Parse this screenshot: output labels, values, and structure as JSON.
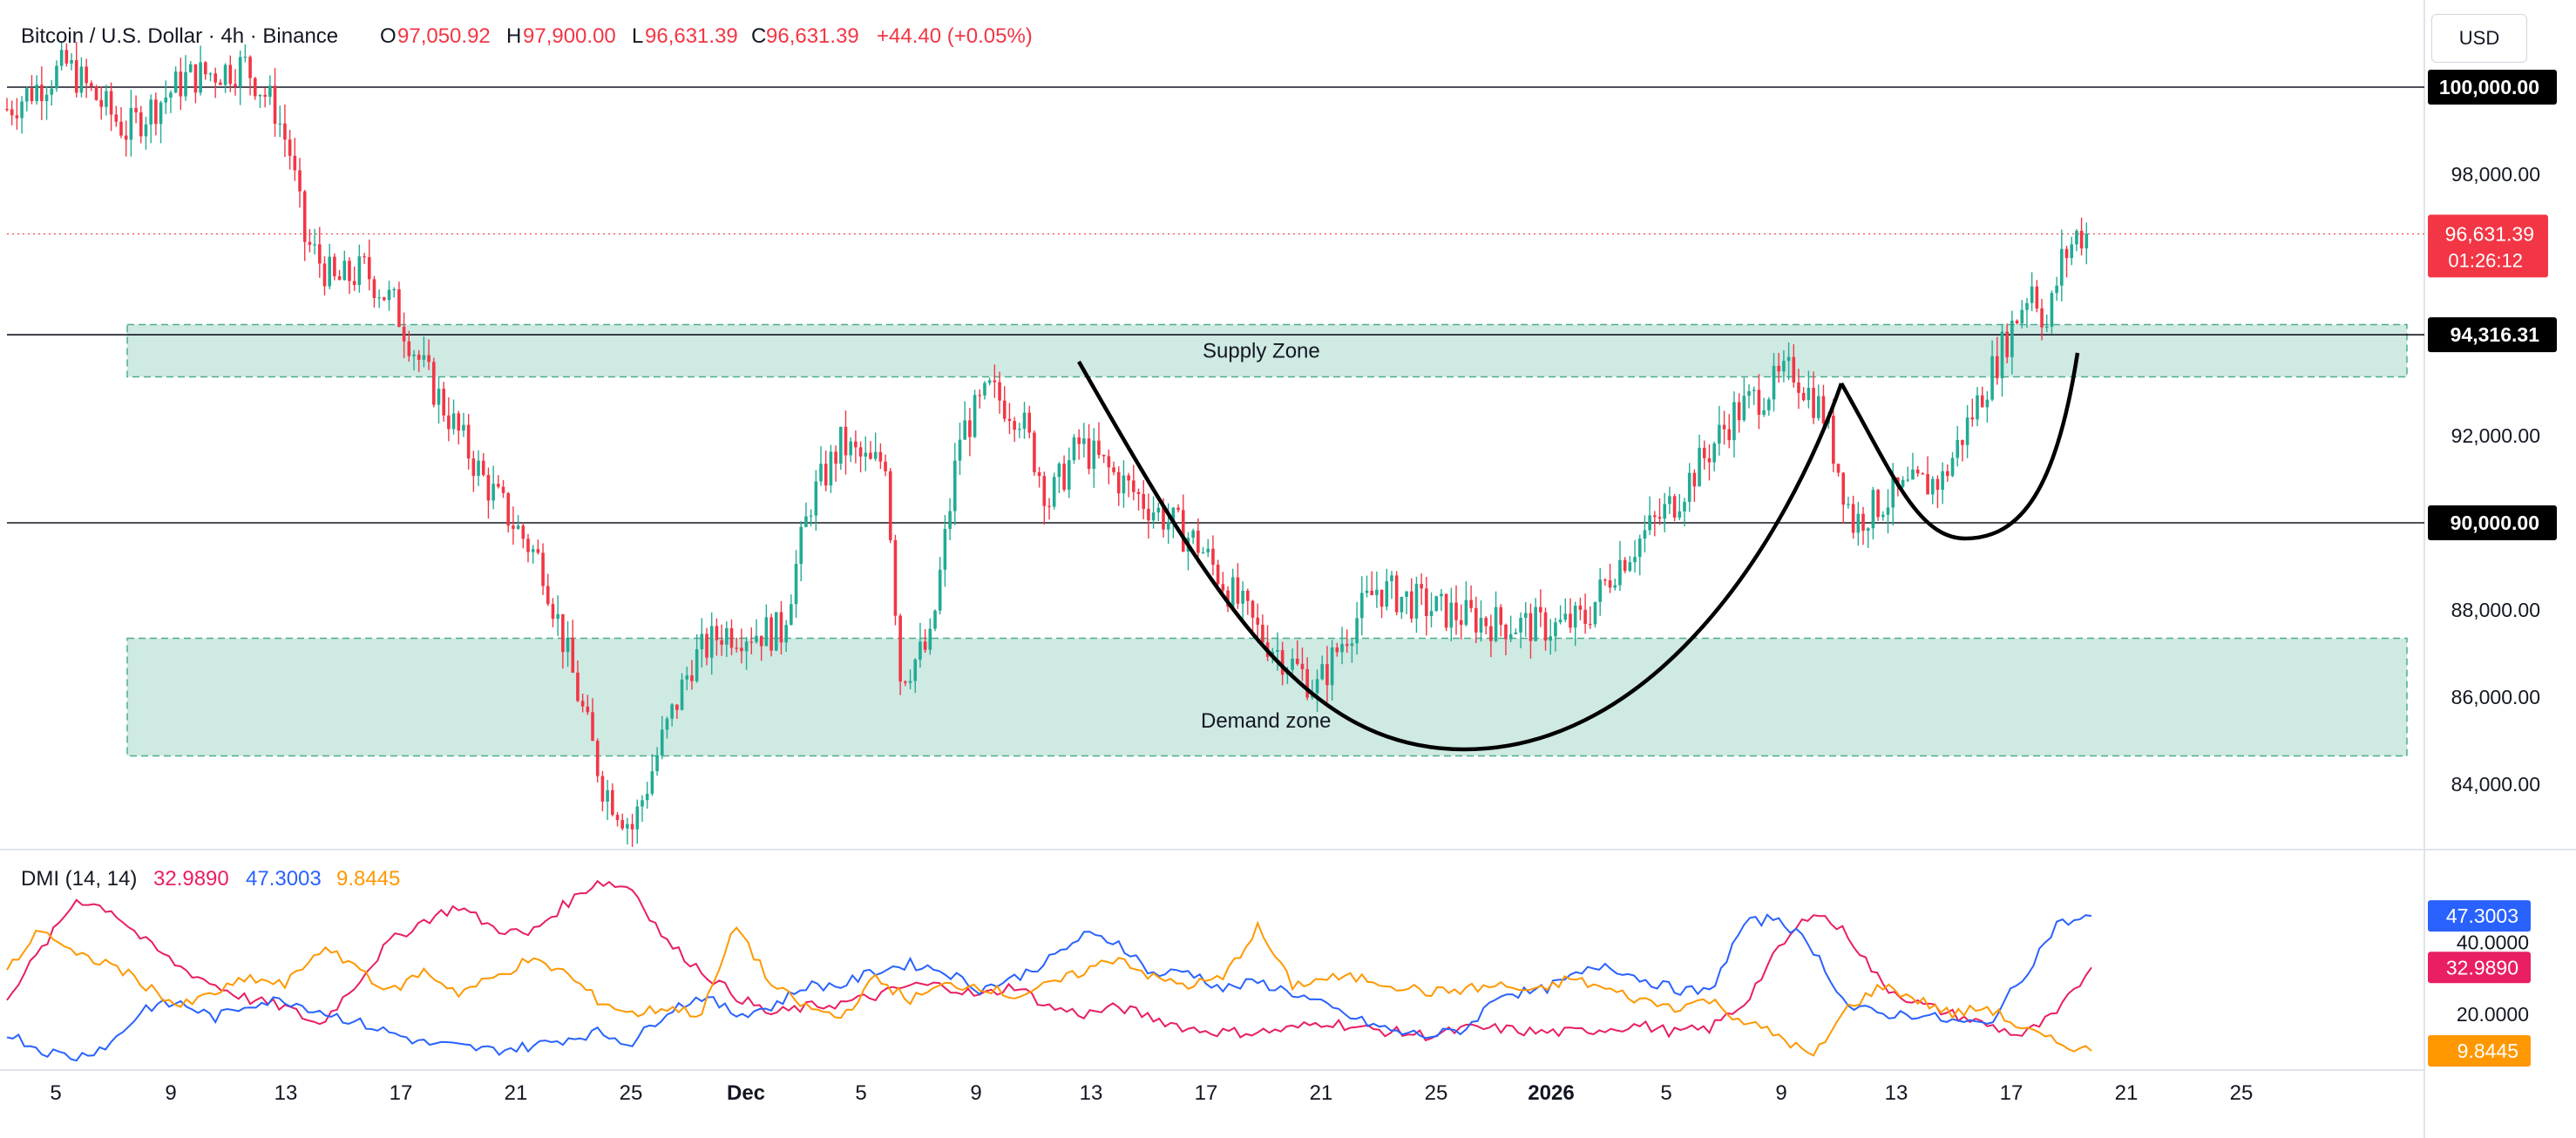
{
  "header": {
    "symbol": "Bitcoin / U.S. Dollar · 4h · Binance",
    "o_label": "O",
    "o_value": "97,050.92",
    "h_label": "H",
    "h_value": "97,900.00",
    "l_label": "L",
    "l_value": "96,631.39",
    "c_label": "C",
    "c_value": "96,631.39",
    "change": "+44.40 (+0.05%)"
  },
  "currency": "USD",
  "colors": {
    "up": "#22ab94",
    "down": "#f23645",
    "zone": "#b2dfd6",
    "zone_border": "#4caf8a",
    "plus_di": "#2962ff",
    "minus_di": "#e91e63",
    "adx": "#ff9800",
    "axis_text": "#131722"
  },
  "chart_data": [
    {
      "type": "candlestick",
      "symbol": "BTCUSD",
      "timeframe": "4h",
      "ylim": [
        82500,
        102000
      ],
      "x_ticks": [
        "5",
        "9",
        "13",
        "17",
        "21",
        "25",
        "Dec",
        "5",
        "9",
        "13",
        "17",
        "21",
        "25",
        "2026",
        "5",
        "9",
        "13",
        "17",
        "21",
        "25"
      ],
      "y_ticks": [
        "84,000.00",
        "86,000.00",
        "88,000.00",
        "92,000.00",
        "98,000.00"
      ],
      "close_path_approx": {
        "x_day_index": [
          0,
          2,
          4,
          6,
          8,
          9,
          9.5,
          10,
          11,
          12,
          13,
          14,
          16,
          18,
          19,
          20,
          21,
          22,
          23,
          24,
          26,
          27,
          28,
          29,
          29.5,
          30,
          31,
          32,
          33,
          34,
          35,
          36,
          38,
          40,
          42,
          44,
          45,
          46,
          48,
          50,
          52,
          53,
          54,
          56,
          58,
          60,
          61,
          62,
          63,
          64,
          65,
          66,
          67,
          68,
          68.5,
          69,
          69.5,
          70
        ],
        "close": [
          99500,
          100500,
          99000,
          100200,
          100500,
          99500,
          98500,
          96500,
          95500,
          95800,
          95000,
          93500,
          91000,
          89000,
          86500,
          84000,
          83000,
          85000,
          86800,
          87500,
          87500,
          90500,
          91800,
          91300,
          91500,
          86500,
          87200,
          92000,
          93000,
          92500,
          90500,
          91800,
          90600,
          89500,
          87500,
          86200,
          87500,
          88500,
          88000,
          87700,
          87600,
          87800,
          89000,
          90500,
          92500,
          93500,
          92500,
          90000,
          90500,
          90800,
          91000,
          92500,
          94000,
          95500,
          94500,
          96000,
          96600,
          96631
        ]
      },
      "horizontal_lines": [
        {
          "label": "100,000.00",
          "value": 100000
        },
        {
          "label": "90,000.00",
          "value": 90000
        },
        {
          "label": "94,316.31",
          "value": 94316.31
        }
      ],
      "current_price": {
        "label": "96,631.39",
        "countdown": "01:26:12",
        "value": 96631.39
      },
      "zones": [
        {
          "label": "Supply Zone",
          "from": 93350,
          "to": 94550
        },
        {
          "label": "Demand zone",
          "from": 84650,
          "to": 87350
        }
      ],
      "pattern": "cup and handle"
    },
    {
      "type": "line",
      "title": "DMI (14, 14)",
      "ylim": [
        5,
        65
      ],
      "y_ticks": [
        "40.0000",
        "20.0000"
      ],
      "series": [
        {
          "name": "minus_di",
          "label": "32.9890",
          "last": 32.989,
          "values": [
            25,
            38,
            52,
            49,
            40,
            33,
            28,
            24,
            22,
            17,
            28,
            40,
            46,
            50,
            44,
            42,
            50,
            57,
            55,
            40,
            32,
            25,
            20,
            22,
            23,
            25,
            28,
            28,
            25,
            28,
            22,
            20,
            22,
            19,
            16,
            15,
            15,
            16,
            18,
            16,
            15,
            14,
            16,
            16,
            15,
            15,
            16,
            17,
            15,
            16,
            23,
            38,
            49,
            42,
            28,
            23,
            20,
            17,
            14,
            20,
            33
          ]
        },
        {
          "name": "plus_di",
          "label": "47.3003",
          "last": 47.3003,
          "values": [
            15,
            10,
            8,
            12,
            22,
            23,
            19,
            23,
            24,
            21,
            18,
            15,
            12,
            11,
            10,
            11,
            13,
            15,
            12,
            21,
            25,
            20,
            22,
            28,
            28,
            32,
            34,
            32,
            27,
            30,
            35,
            42,
            40,
            31,
            32,
            27,
            29,
            26,
            22,
            18,
            15,
            14,
            16,
            26,
            26,
            30,
            34,
            30,
            27,
            26,
            45,
            47,
            38,
            22,
            20,
            20,
            18,
            17,
            30,
            45,
            47
          ]
        },
        {
          "name": "adx",
          "label": "9.8445",
          "last": 9.8445,
          "values": [
            32,
            44,
            36,
            34,
            28,
            22,
            26,
            30,
            28,
            38,
            34,
            26,
            32,
            26,
            30,
            35,
            32,
            24,
            20,
            22,
            20,
            45,
            28,
            22,
            19,
            30,
            24,
            28,
            28,
            25,
            28,
            32,
            36,
            30,
            28,
            30,
            44,
            28,
            30,
            30,
            28,
            26,
            27,
            28,
            26,
            30,
            27,
            24,
            22,
            24,
            18,
            14,
            8,
            22,
            28,
            24,
            20,
            22,
            16,
            12,
            10
          ]
        }
      ]
    }
  ]
}
